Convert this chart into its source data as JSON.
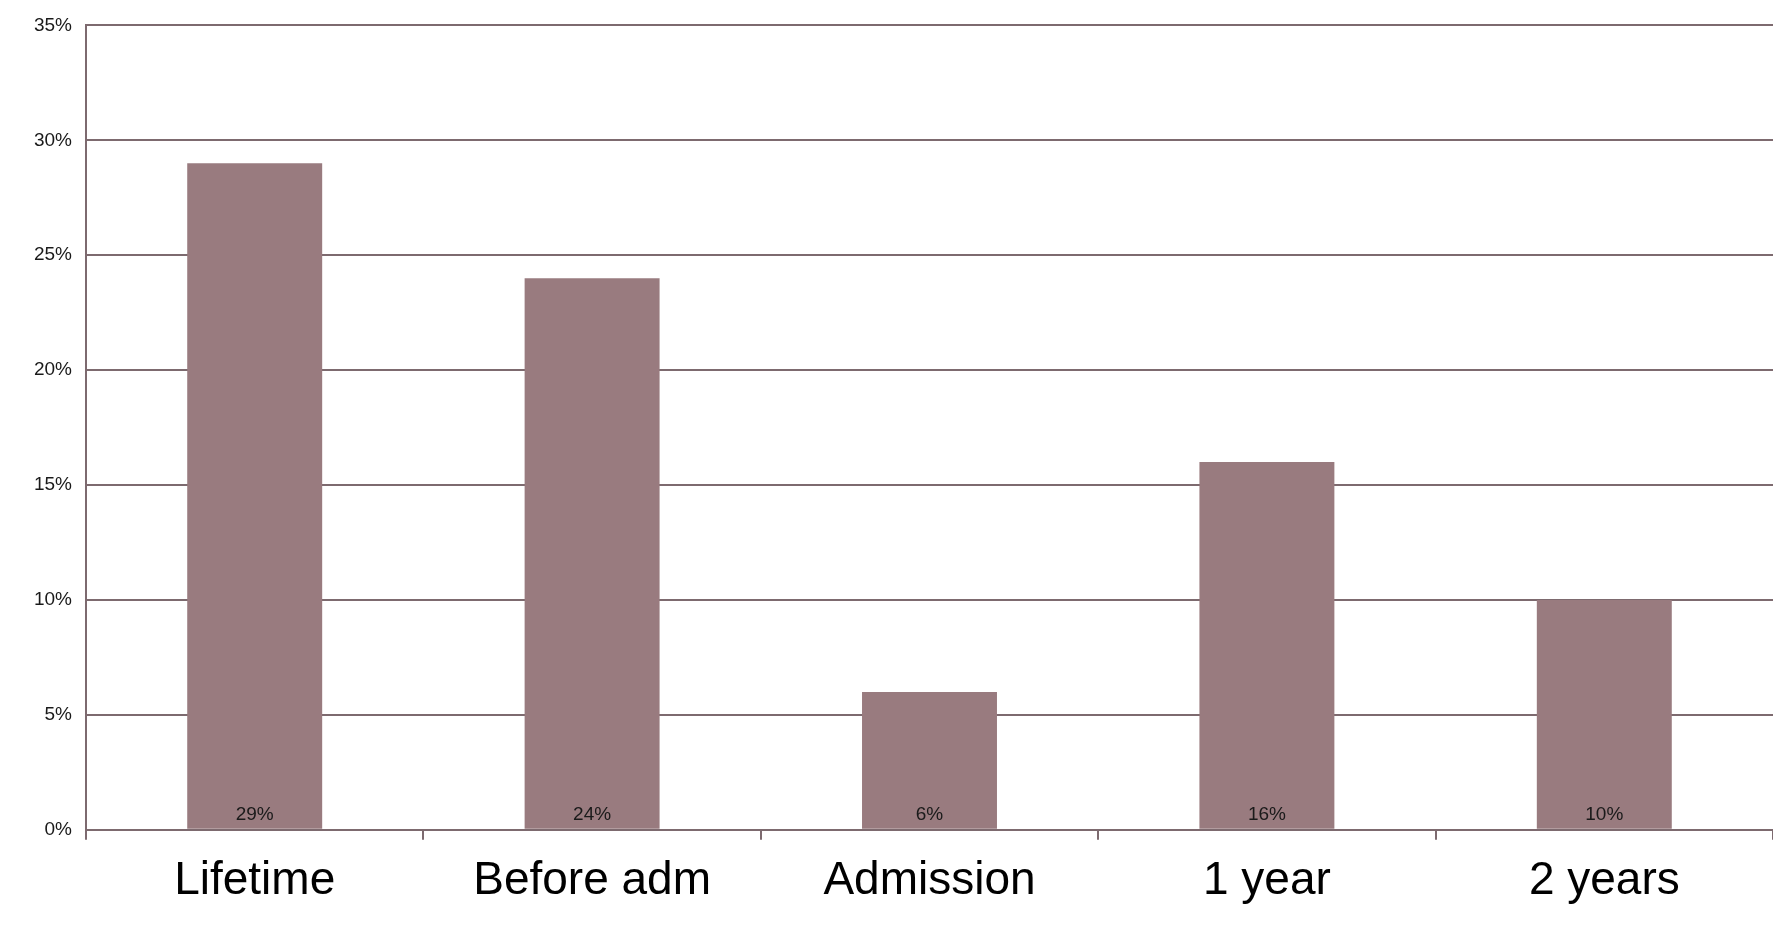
{
  "chart_data": {
    "type": "bar",
    "categories": [
      "Lifetime",
      "Before adm",
      "Admission",
      "1 year",
      "2 years"
    ],
    "values": [
      29,
      24,
      6,
      16,
      10
    ],
    "value_labels": [
      "29%",
      "24%",
      "6%",
      "16%",
      "10%"
    ],
    "color": "#997b7f",
    "ylim": [
      0,
      35
    ],
    "yticks": [
      {
        "value": 0,
        "label": "0%"
      },
      {
        "value": 5,
        "label": "5%"
      },
      {
        "value": 10,
        "label": "10%"
      },
      {
        "value": 15,
        "label": "15%"
      },
      {
        "value": 20,
        "label": "20%"
      },
      {
        "value": 25,
        "label": "25%"
      },
      {
        "value": 30,
        "label": "30%"
      },
      {
        "value": 35,
        "label": "35%"
      }
    ],
    "grid": "y"
  }
}
